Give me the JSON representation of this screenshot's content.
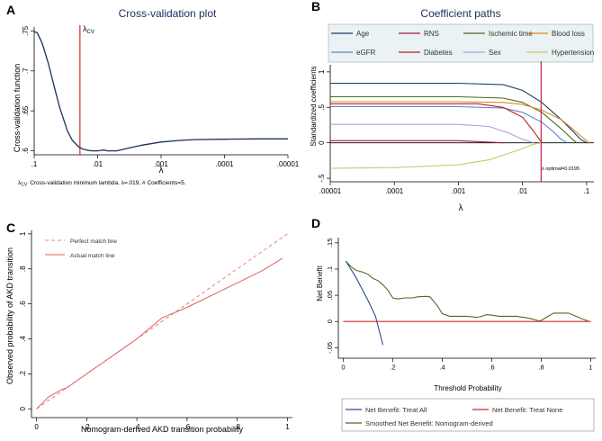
{
  "colors": {
    "navy": "#1a2f5c",
    "red": "#d62728",
    "salmon": "#e06060",
    "olive": "#4a6e1e",
    "mint": "#aee0a8",
    "panel_bg": "#eaf2f3",
    "path_colors": [
      "#1a3d6b",
      "#a01e3c",
      "#4a6e1e",
      "#e08a1e",
      "#5b86c4",
      "#b8202a",
      "#a8a0e0",
      "#c8c86a"
    ]
  },
  "chart_data": [
    {
      "id": "A",
      "type": "line",
      "panel_label": "A",
      "title": "Cross-validation plot",
      "xlabel": "λ",
      "ylabel": "Cross-validation function",
      "x_scale": "log-reversed",
      "x_ticks": [
        ".1",
        ".01",
        ".001",
        ".0001",
        ".00001"
      ],
      "x_tick_values": [
        0.1,
        0.01,
        0.001,
        0.0001,
        1e-05
      ],
      "y_ticks": [
        ".6",
        ".65",
        ".7",
        ".75"
      ],
      "y_tick_values": [
        0.6,
        0.65,
        0.7,
        0.75
      ],
      "xlim": [
        0.1,
        1e-05
      ],
      "ylim": [
        0.595,
        0.755
      ],
      "vline_label": "λCV",
      "vline_label_main": "λ",
      "vline_label_sub": "CV",
      "vline_x": 0.019,
      "footnote_symbol": "λCV",
      "footnote_main": "λ",
      "footnote_sub": "CV",
      "footnote": "Cross-validation minimum lambda.  λ=.019, # Coefficients=5.",
      "series": [
        {
          "name": "CV function",
          "x": [
            0.1,
            0.09,
            0.075,
            0.06,
            0.05,
            0.04,
            0.03,
            0.025,
            0.02,
            0.017,
            0.014,
            0.012,
            0.01,
            0.009,
            0.008,
            0.007,
            0.005,
            0.003,
            0.002,
            0.001,
            0.0005,
            0.0003,
            0.0001,
            3e-05,
            1e-05
          ],
          "y": [
            0.749,
            0.748,
            0.735,
            0.71,
            0.685,
            0.655,
            0.625,
            0.613,
            0.605,
            0.602,
            0.6005,
            0.6,
            0.6,
            0.6005,
            0.601,
            0.6,
            0.6,
            0.604,
            0.607,
            0.611,
            0.613,
            0.614,
            0.6145,
            0.615,
            0.615
          ]
        }
      ]
    },
    {
      "id": "B",
      "type": "line",
      "panel_label": "B",
      "title": "Coefficient paths",
      "xlabel": "λ",
      "ylabel": "Standardized coefficients",
      "x_scale": "log",
      "x_ticks": [
        ".00001",
        ".0001",
        ".001",
        ".01",
        ".1"
      ],
      "x_tick_values": [
        1e-05,
        0.0001,
        0.001,
        0.01,
        0.1
      ],
      "y_ticks": [
        "-.5",
        "0",
        ".5",
        "1"
      ],
      "y_tick_values": [
        -0.5,
        0,
        0.5,
        1
      ],
      "xlim": [
        1e-05,
        0.13
      ],
      "ylim": [
        -0.55,
        1.1
      ],
      "vline_x": 0.0195,
      "annotation": "λ optimal=0.0195",
      "legend": [
        "Age",
        "RNS",
        "Ischemic time",
        "Blood loss",
        "eGFR",
        "Diabetes",
        "Sex",
        "Hypertension"
      ],
      "series": [
        {
          "name": "Age",
          "x": [
            1e-05,
            0.001,
            0.005,
            0.01,
            0.02,
            0.04,
            0.06,
            0.08,
            0.1
          ],
          "y": [
            0.84,
            0.84,
            0.82,
            0.74,
            0.57,
            0.33,
            0.17,
            0.05,
            0
          ]
        },
        {
          "name": "RNS",
          "x": [
            1e-05,
            0.001,
            0.003,
            0.005
          ],
          "y": [
            0.03,
            0.03,
            0.01,
            0
          ]
        },
        {
          "name": "Ischemic time",
          "x": [
            1e-05,
            0.001,
            0.005,
            0.01,
            0.02,
            0.04,
            0.06,
            0.07
          ],
          "y": [
            0.65,
            0.65,
            0.63,
            0.57,
            0.43,
            0.2,
            0.05,
            0
          ]
        },
        {
          "name": "Blood loss",
          "x": [
            1e-05,
            0.001,
            0.005,
            0.01,
            0.02,
            0.04,
            0.06,
            0.08,
            0.11
          ],
          "y": [
            0.58,
            0.58,
            0.57,
            0.54,
            0.46,
            0.33,
            0.2,
            0.1,
            0
          ]
        },
        {
          "name": "eGFR",
          "x": [
            1e-05,
            0.001,
            0.005,
            0.01,
            0.02,
            0.03,
            0.04,
            0.05
          ],
          "y": [
            0.51,
            0.51,
            0.49,
            0.43,
            0.29,
            0.16,
            0.05,
            0
          ]
        },
        {
          "name": "Diabetes",
          "x": [
            1e-05,
            0.002,
            0.005,
            0.01,
            0.015,
            0.02
          ],
          "y": [
            0.55,
            0.55,
            0.5,
            0.36,
            0.16,
            0
          ]
        },
        {
          "name": "Sex",
          "x": [
            1e-05,
            0.001,
            0.003,
            0.006,
            0.01,
            0.015
          ],
          "y": [
            0.26,
            0.26,
            0.23,
            0.14,
            0.05,
            0
          ]
        },
        {
          "name": "Hypertension",
          "x": [
            1e-05,
            0.0001,
            0.001,
            0.003,
            0.006,
            0.01,
            0.015,
            0.02
          ],
          "y": [
            -0.36,
            -0.35,
            -0.31,
            -0.24,
            -0.15,
            -0.08,
            -0.02,
            0
          ]
        }
      ]
    },
    {
      "id": "C",
      "type": "line",
      "panel_label": "C",
      "xlabel": "Nomogram-derived AKD transition probability",
      "ylabel": "Observed probability of AKD transition",
      "x_ticks": [
        "0",
        ".2",
        ".4",
        ".6",
        ".8",
        "1"
      ],
      "x_tick_values": [
        0,
        0.2,
        0.4,
        0.6,
        0.8,
        1
      ],
      "y_ticks": [
        "0",
        ".2",
        ".4",
        ".6",
        ".8",
        "1"
      ],
      "y_tick_values": [
        0,
        0.2,
        0.4,
        0.6,
        0.8,
        1
      ],
      "xlim": [
        -0.02,
        1.02
      ],
      "ylim": [
        -0.05,
        1.02
      ],
      "legend": [
        "Perfect match line",
        "Actual match line"
      ],
      "series": [
        {
          "name": "Perfect match line",
          "style": "dashed",
          "x": [
            0,
            1
          ],
          "y": [
            0,
            1
          ]
        },
        {
          "name": "Actual match line",
          "style": "solid",
          "x": [
            0,
            0.05,
            0.1,
            0.12,
            0.2,
            0.3,
            0.4,
            0.5,
            0.55,
            0.6,
            0.7,
            0.8,
            0.9,
            0.98
          ],
          "y": [
            0,
            0.07,
            0.11,
            0.12,
            0.2,
            0.3,
            0.4,
            0.52,
            0.55,
            0.58,
            0.65,
            0.72,
            0.79,
            0.86
          ]
        }
      ]
    },
    {
      "id": "D",
      "type": "line",
      "panel_label": "D",
      "xlabel": "Threshold Probability",
      "ylabel": "Net Benefit",
      "x_ticks": [
        "0",
        ".2",
        ".4",
        ".6",
        ".8",
        "1"
      ],
      "x_tick_values": [
        0,
        0.2,
        0.4,
        0.6,
        0.8,
        1
      ],
      "y_ticks": [
        "-.05",
        "0",
        ".05",
        ".1",
        ".15"
      ],
      "y_tick_values": [
        -0.05,
        0,
        0.05,
        0.1,
        0.15
      ],
      "xlim": [
        -0.02,
        1.02
      ],
      "ylim": [
        -0.07,
        0.16
      ],
      "legend": [
        "Net Benefit: Treat All",
        "Net Benefit: Treat None",
        "Smoothed Net Benefit: Nomogram-derived"
      ],
      "series": [
        {
          "name": "Net Benefit: Treat All",
          "x": [
            0.01,
            0.05,
            0.1,
            0.13,
            0.16
          ],
          "y": [
            0.115,
            0.085,
            0.04,
            0.01,
            -0.045
          ]
        },
        {
          "name": "Net Benefit: Treat None",
          "x": [
            0,
            1
          ],
          "y": [
            0,
            0
          ]
        },
        {
          "name": "Smoothed Net Benefit: Nomogram-derived",
          "x": [
            0.01,
            0.03,
            0.05,
            0.08,
            0.1,
            0.12,
            0.14,
            0.16,
            0.18,
            0.2,
            0.22,
            0.25,
            0.28,
            0.3,
            0.33,
            0.35,
            0.38,
            0.4,
            0.43,
            0.46,
            0.5,
            0.54,
            0.56,
            0.58,
            0.6,
            0.63,
            0.66,
            0.7,
            0.74,
            0.77,
            0.79,
            0.8,
            0.82,
            0.85,
            0.88,
            0.91,
            0.94,
            0.97,
            0.99
          ],
          "y": [
            0.115,
            0.105,
            0.098,
            0.094,
            0.09,
            0.082,
            0.078,
            0.07,
            0.06,
            0.045,
            0.043,
            0.045,
            0.045,
            0.047,
            0.048,
            0.047,
            0.03,
            0.015,
            0.01,
            0.01,
            0.01,
            0.008,
            0.01,
            0.013,
            0.012,
            0.01,
            0.01,
            0.01,
            0.007,
            0.004,
            0.001,
            0.002,
            0.008,
            0.016,
            0.016,
            0.016,
            0.01,
            0.004,
            0.001
          ]
        }
      ]
    }
  ]
}
